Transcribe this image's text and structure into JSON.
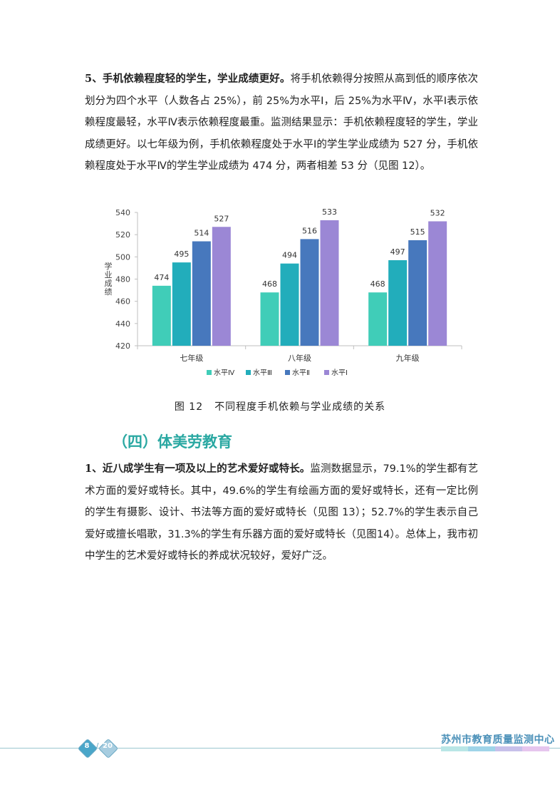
{
  "paragraph1": {
    "heading": "5、手机依赖程度轻的学生，学业成绩更好。",
    "body": "将手机依赖得分按照从高到低的顺序依次划分为四个水平（人数各占 25%），前 25%为水平Ⅰ，后 25%为水平Ⅳ，水平Ⅰ表示依赖程度最轻，水平Ⅳ表示依赖程度最重。监测结果显示：手机依赖程度轻的学生，学业成绩更好。以七年级为例，手机依赖程度处于水平Ⅰ的学生学业成绩为 527 分，手机依赖程度处于水平Ⅳ的学生学业成绩为 474 分，两者相差 53 分（见图 12）。"
  },
  "chart_data": {
    "type": "bar",
    "categories": [
      "七年级",
      "八年级",
      "九年级"
    ],
    "series": [
      {
        "name": "水平Ⅳ",
        "values": [
          474,
          468,
          468
        ],
        "color": "#40cdb8"
      },
      {
        "name": "水平Ⅲ",
        "values": [
          495,
          494,
          497
        ],
        "color": "#22adbb"
      },
      {
        "name": "水平Ⅱ",
        "values": [
          514,
          516,
          515
        ],
        "color": "#4778bd"
      },
      {
        "name": "水平Ⅰ",
        "values": [
          527,
          533,
          532
        ],
        "color": "#9b87d5"
      }
    ],
    "ylabel": "学业成绩",
    "ylim": [
      420,
      540
    ],
    "yticks": [
      420,
      440,
      460,
      480,
      500,
      520,
      540
    ],
    "grid": false,
    "legend": "bottom"
  },
  "caption": {
    "number": "图 12",
    "text": "不同程度手机依赖与学业成绩的关系"
  },
  "section_title": "（四）体美劳教育",
  "paragraph2": {
    "heading": "1、近八成学生有一项及以上的艺术爱好或特长。",
    "body": "监测数据显示，79.1%的学生都有艺术方面的爱好或特长。其中，49.6%的学生有绘画方面的爱好或特长，还有一定比例的学生有摄影、设计、书法等方面的爱好或特长（见图 13）；52.7%的学生表示自己爱好或擅长唱歌，31.3%的学生有乐器方面的爱好或特长（见图14）。总体上，我市初中学生的艺术爱好或特长的养成状况较好，爱好广泛。"
  },
  "footer": {
    "page_current": "8",
    "page_separator": "/",
    "page_total": "20",
    "organization": "苏州市教育质量监测中心",
    "stripe_colors": [
      "#b9e6e6",
      "#9fd4e8",
      "#c7c0ea",
      "#e6c6ee"
    ]
  }
}
